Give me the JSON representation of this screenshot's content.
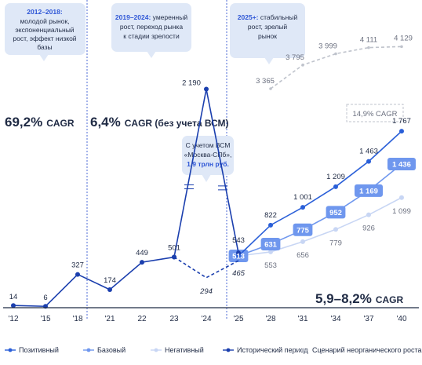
{
  "colors": {
    "historical": "#1b3fae",
    "positive": "#2a5fd8",
    "base": "#6f97ee",
    "negative": "#c8d6f4",
    "inorganic": "#bfc3cc",
    "callout": "#dfe8f7",
    "dark": "#1f2a44"
  },
  "callouts": {
    "c1": {
      "bold": "2012–2018:",
      "lines": [
        "молодой рынок,",
        "экспоненциальный",
        "рост, эффект низкой",
        "базы"
      ]
    },
    "c2": {
      "bold": "2019–2024:",
      "first_rest": " умеренный",
      "lines": [
        "рост, переход рынка",
        "к стадии зрелости"
      ]
    },
    "c3": {
      "bold": "2025+:",
      "first_rest": " стабильный",
      "lines": [
        "рост, зрелый",
        "рынок"
      ]
    },
    "msk": {
      "lines": [
        "С учетом ВСМ",
        "«Москва-СПб»,"
      ],
      "bold": "1,9 трлн руб."
    }
  },
  "cagr": {
    "c1_value": "69,2%",
    "c1_label": "CAGR",
    "c2_value": "6,4%",
    "c2_label": "CAGR (без учета ВСМ)",
    "c3_value": "5,9–8,2%",
    "c3_label": "CAGR",
    "inorganic_box": "14,9% CAGR"
  },
  "chart_data": {
    "type": "line",
    "x_ticks": [
      "'12",
      "'15",
      "'18",
      "'21",
      "22",
      "23",
      "'24",
      "'25",
      "'28",
      "'31",
      "'34",
      "'37",
      "'40"
    ],
    "series": [
      {
        "name": "Исторический период",
        "x": [
          "'12",
          "'15",
          "'18",
          "'21",
          "22",
          "23"
        ],
        "values": [
          14,
          6,
          327,
          174,
          449,
          501
        ],
        "labels": [
          "14",
          "6",
          "327",
          "174",
          "449",
          "501"
        ]
      },
      {
        "name": "Исторический период (с учетом ВСМ)",
        "x": [
          "23",
          "'24",
          "'25"
        ],
        "values": [
          501,
          2190,
          543
        ],
        "labels": [
          "",
          "2 190",
          "543"
        ]
      },
      {
        "name": "Исторический период (без учета ВСМ)",
        "x": [
          "23",
          "'24",
          "'25"
        ],
        "values": [
          501,
          294,
          465
        ],
        "labels": [
          "",
          "294",
          "465"
        ]
      },
      {
        "name": "Позитивный",
        "x": [
          "'25",
          "'28",
          "'31",
          "'34",
          "'37",
          "'40"
        ],
        "values": [
          513,
          822,
          1001,
          1209,
          1463,
          1767
        ],
        "labels": [
          "",
          "822",
          "1 001",
          "1 209",
          "1 463",
          "1 767"
        ]
      },
      {
        "name": "Базовый",
        "x": [
          "'25",
          "'28",
          "'31",
          "'34",
          "'37",
          "'40"
        ],
        "values": [
          513,
          631,
          775,
          952,
          1169,
          1436
        ],
        "labels": [
          "513",
          "631",
          "775",
          "952",
          "1 169",
          "1 436"
        ]
      },
      {
        "name": "Негативный",
        "x": [
          "'25",
          "'28",
          "'31",
          "'34",
          "'37",
          "'40"
        ],
        "values": [
          513,
          553,
          656,
          779,
          926,
          1099
        ],
        "labels": [
          "",
          "553",
          "656",
          "779",
          "926",
          "1 099"
        ]
      },
      {
        "name": "Сценарий неорганического роста",
        "x": [
          "'28",
          "'31",
          "'34",
          "'37",
          "'40"
        ],
        "values": [
          3365,
          3795,
          3999,
          4111,
          4129
        ],
        "labels": [
          "3 365",
          "3 795",
          "3 999",
          "4 111",
          "4 129"
        ]
      }
    ],
    "legend": [
      "Позитивный",
      "Базовый",
      "Негативный",
      "Исторический период",
      "Сценарий неорганического роста"
    ],
    "legend_position": "bottom",
    "grid": false
  }
}
